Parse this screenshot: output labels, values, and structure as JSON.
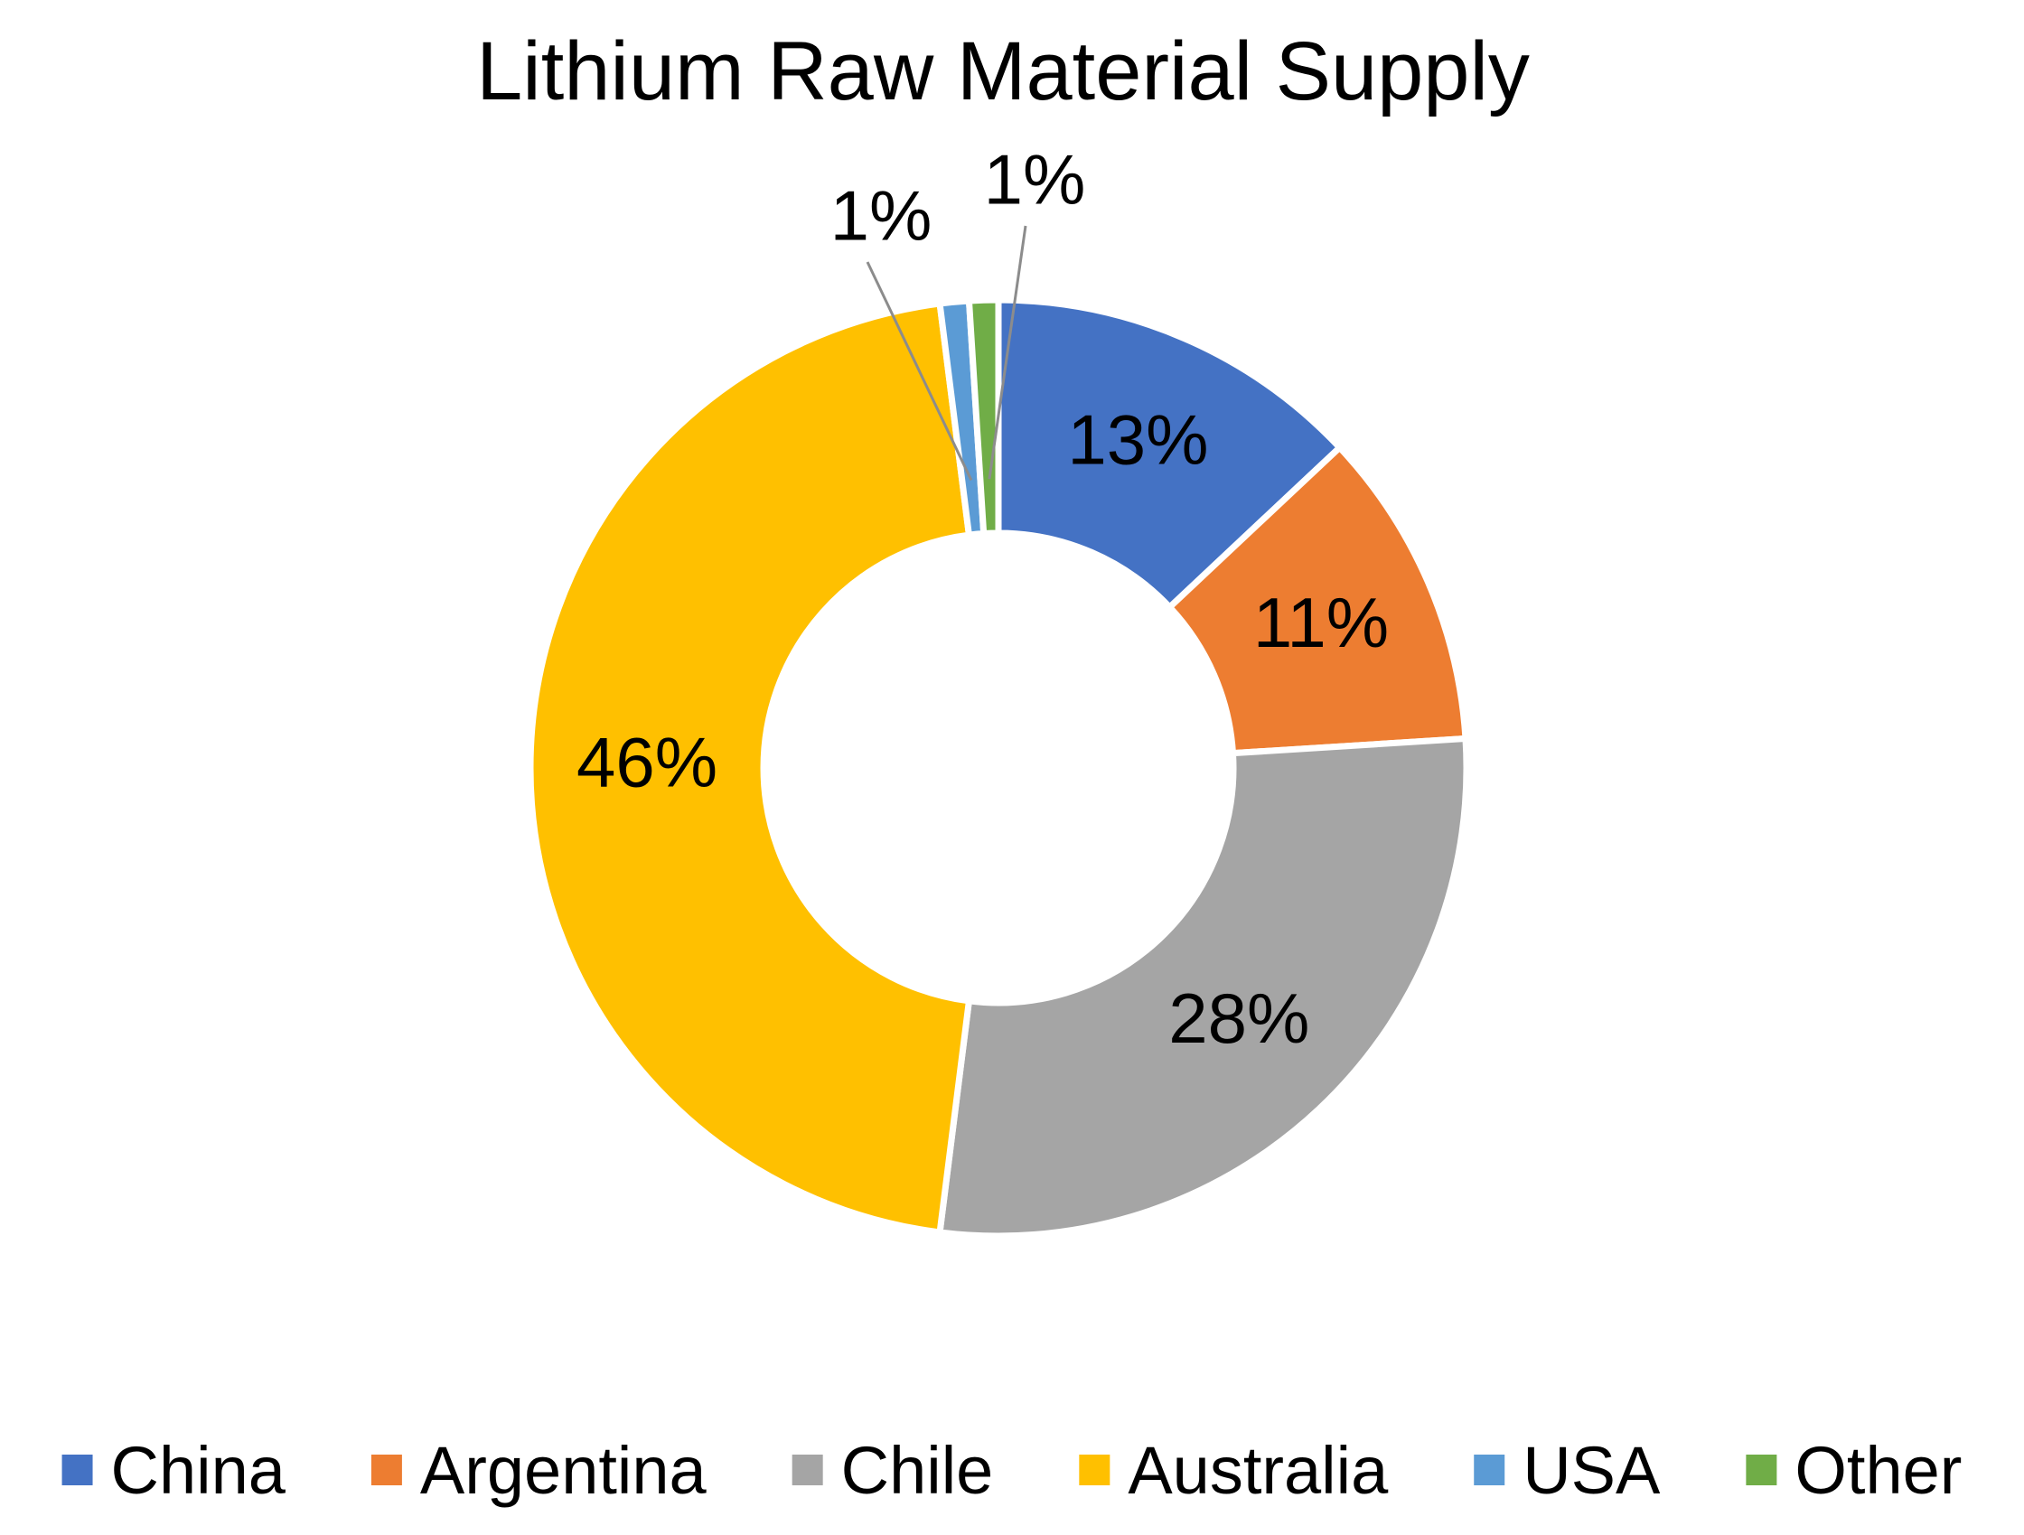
{
  "chart_data": {
    "type": "pie",
    "variant": "donut",
    "title": "Lithium Raw Material Supply",
    "categories": [
      "China",
      "Argentina",
      "Chile",
      "Australia",
      "USA",
      "Other"
    ],
    "values": [
      13,
      11,
      28,
      46,
      1,
      1
    ],
    "data_labels": [
      "13%",
      "11%",
      "28%",
      "46%",
      "1%",
      "1%"
    ],
    "colors": [
      "#4472C4",
      "#ED7D31",
      "#A5A5A5",
      "#FFC000",
      "#5B9BD5",
      "#70AD47"
    ],
    "legend": {
      "position": "bottom",
      "entries": [
        "China",
        "Argentina",
        "Chile",
        "Australia",
        "USA",
        "Other"
      ]
    }
  }
}
